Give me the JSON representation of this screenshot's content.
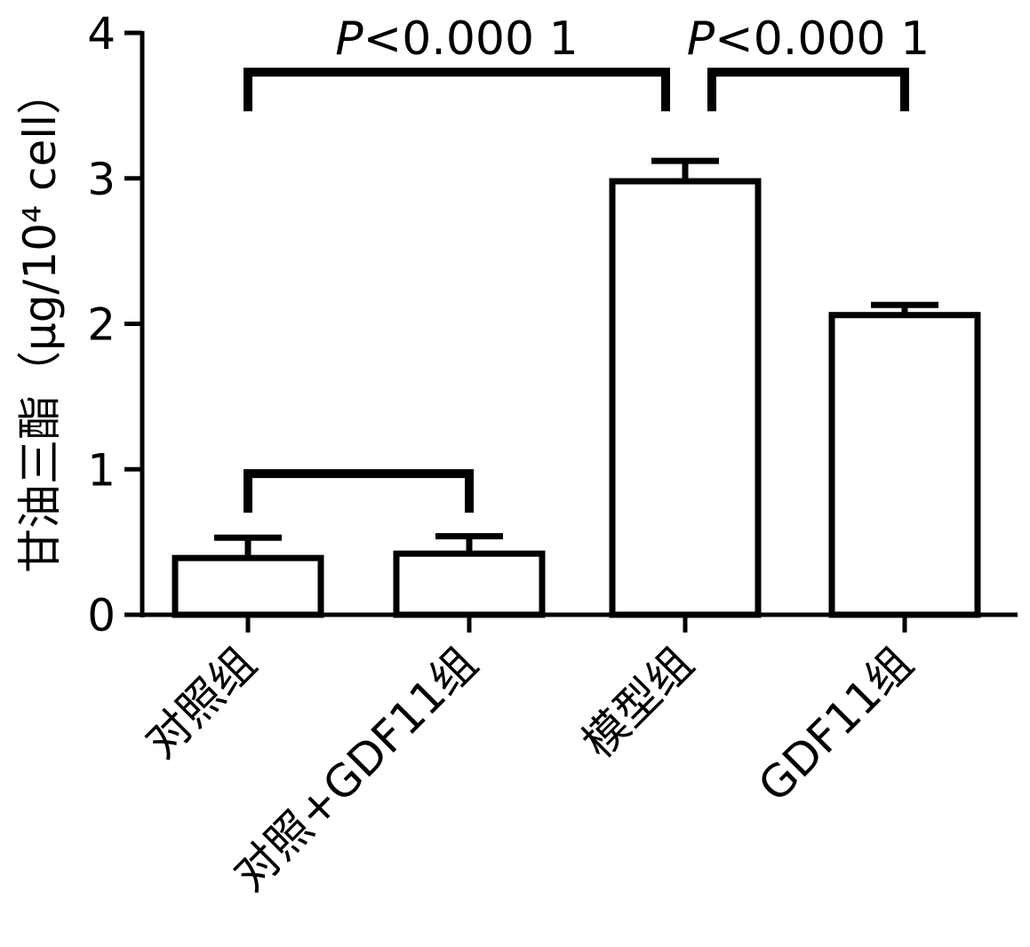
{
  "chart_data": {
    "type": "bar",
    "ylabel": "甘油三酯（μg/10⁴ cell）",
    "ylim": [
      0,
      4
    ],
    "yticks": [
      "0",
      "1",
      "2",
      "3",
      "4"
    ],
    "categories": [
      "对照组",
      "对照+GDF11组",
      "模型组",
      "GDF11组"
    ],
    "values": [
      0.39,
      0.42,
      2.98,
      2.06
    ],
    "errors": [
      0.14,
      0.12,
      0.14,
      0.07
    ],
    "significance": [
      {
        "from": 0,
        "to": 2,
        "label_prefix": "P",
        "label_rest": "<0.000 1",
        "level": 3.73
      },
      {
        "from": 2,
        "to": 3,
        "label_prefix": "P",
        "label_rest": "<0.000 1",
        "level": 3.73
      },
      {
        "from": 0,
        "to": 1,
        "label_prefix": "",
        "label_rest": "",
        "level": 0.97
      }
    ],
    "colors": {
      "bar_fill": "#ffffff",
      "stroke": "#000000"
    }
  }
}
